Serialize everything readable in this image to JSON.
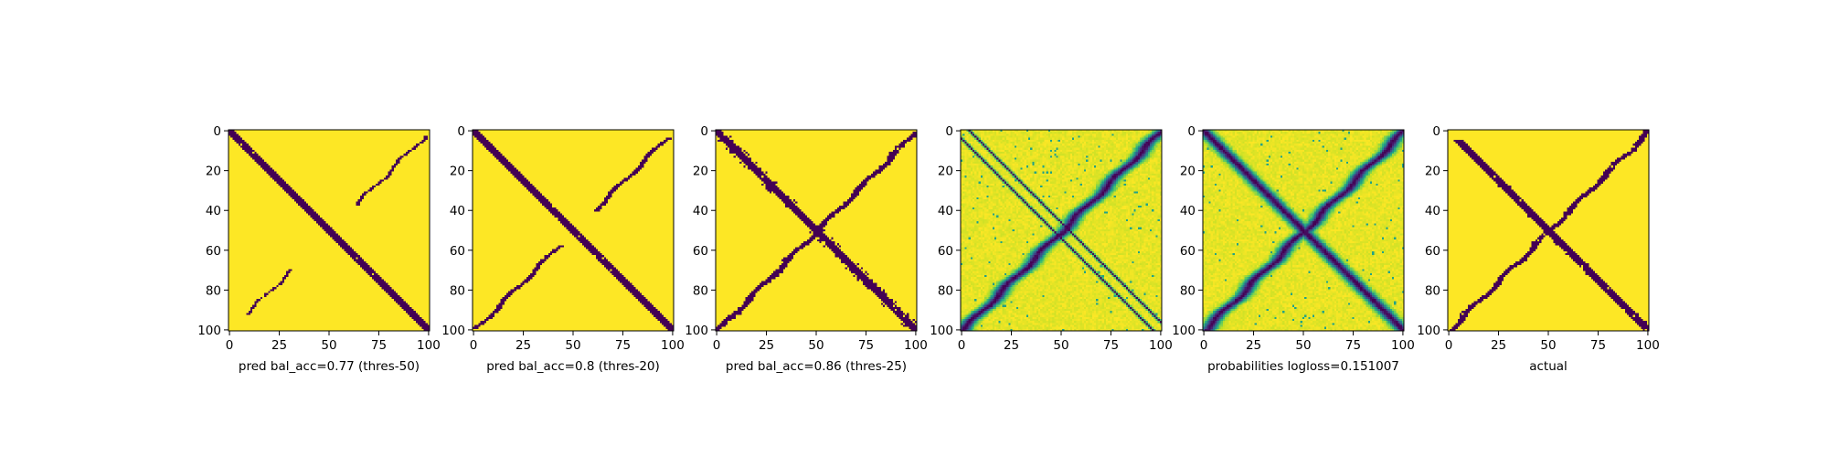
{
  "chart_data": [
    {
      "type": "heatmap",
      "title": "",
      "xlabel": "pred bal_acc=0.77 (thres-50)",
      "ylabel": "",
      "xlim": [
        0,
        101
      ],
      "ylim": [
        101,
        0
      ],
      "x_ticks": [
        "0",
        "25",
        "50",
        "75",
        "100"
      ],
      "y_ticks": [
        "0",
        "20",
        "40",
        "60",
        "80",
        "100"
      ],
      "colormap": "viridis",
      "grid": false,
      "pattern": {
        "diagonal_width": 2.6,
        "diagonal_extent": [
          0,
          101
        ],
        "anti_bands": [
          {
            "from": 37,
            "to": 3,
            "width": 1.1,
            "gap": [
              null,
              null
            ]
          },
          {
            "from": 70,
            "to": 92,
            "width": 1.0,
            "gap": [
              null,
              null
            ]
          }
        ],
        "speckle": 0.0,
        "soft": false
      }
    },
    {
      "type": "heatmap",
      "title": "",
      "xlabel": "pred bal_acc=0.8 (thres-20)",
      "ylabel": "",
      "xlim": [
        0,
        101
      ],
      "ylim": [
        101,
        0
      ],
      "x_ticks": [
        "0",
        "25",
        "50",
        "75",
        "100"
      ],
      "y_ticks": [
        "0",
        "20",
        "40",
        "60",
        "80",
        "100"
      ],
      "colormap": "viridis",
      "grid": false,
      "pattern": {
        "diagonal_width": 3.0,
        "diagonal_extent": [
          0,
          101
        ],
        "anti_bands": [
          {
            "from": 40,
            "to": 4,
            "width": 1.5,
            "gap": [
              null,
              null
            ]
          },
          {
            "from": 58,
            "to": 99,
            "width": 1.5,
            "gap": [
              null,
              null
            ]
          }
        ],
        "speckle": 0.0,
        "soft": false
      }
    },
    {
      "type": "heatmap",
      "title": "",
      "xlabel": "pred bal_acc=0.86 (thres-25)",
      "ylabel": "",
      "xlim": [
        0,
        101
      ],
      "ylim": [
        101,
        0
      ],
      "x_ticks": [
        "0",
        "25",
        "50",
        "75",
        "100"
      ],
      "y_ticks": [
        "0",
        "20",
        "40",
        "60",
        "80",
        "100"
      ],
      "colormap": "viridis",
      "grid": false,
      "pattern": {
        "diagonal_width": 3.2,
        "diagonal_extent": [
          0,
          101
        ],
        "anti_bands": [
          {
            "from": 0,
            "to": 101,
            "width": 2.0,
            "gap": [
              null,
              null
            ]
          }
        ],
        "speckle": 0.05,
        "soft": false
      }
    },
    {
      "type": "heatmap",
      "title": "",
      "xlabel": "",
      "ylabel": "",
      "xlim": [
        0,
        101
      ],
      "ylim": [
        101,
        0
      ],
      "x_ticks": [
        "0",
        "25",
        "50",
        "75",
        "100"
      ],
      "y_ticks": [
        "0",
        "20",
        "40",
        "60",
        "80",
        "100"
      ],
      "colormap": "viridis",
      "grid": false,
      "pattern": {
        "diagonal_width": 0,
        "diagonal_extent": [
          0,
          101
        ],
        "parallel_lines": [
          -4,
          4
        ],
        "anti_bands": [
          {
            "from": 0,
            "to": 101,
            "width": 3.5,
            "gap": [
              null,
              null
            ]
          }
        ],
        "speckle": 0.12,
        "soft": true
      }
    },
    {
      "type": "heatmap",
      "title": "",
      "xlabel": "probabilities logloss=0.151007",
      "ylabel": "",
      "xlim": [
        0,
        101
      ],
      "ylim": [
        101,
        0
      ],
      "x_ticks": [
        "0",
        "25",
        "50",
        "75",
        "100"
      ],
      "y_ticks": [
        "0",
        "20",
        "40",
        "60",
        "80",
        "100"
      ],
      "colormap": "viridis",
      "grid": false,
      "pattern": {
        "diagonal_width": 3.5,
        "diagonal_extent": [
          0,
          101
        ],
        "anti_bands": [
          {
            "from": 0,
            "to": 101,
            "width": 3.5,
            "gap": [
              null,
              null
            ]
          }
        ],
        "speckle": 0.12,
        "soft": true
      }
    },
    {
      "type": "heatmap",
      "title": "",
      "xlabel": "actual",
      "ylabel": "",
      "xlim": [
        0,
        101
      ],
      "ylim": [
        101,
        0
      ],
      "x_ticks": [
        "0",
        "25",
        "50",
        "75",
        "100"
      ],
      "y_ticks": [
        "0",
        "20",
        "40",
        "60",
        "80",
        "100"
      ],
      "colormap": "viridis",
      "grid": false,
      "pattern": {
        "diagonal_width": 3.0,
        "diagonal_extent": [
          5,
          101
        ],
        "anti_bands": [
          {
            "from": 0,
            "to": 101,
            "width": 2.0,
            "gap": [
              null,
              null
            ]
          }
        ],
        "speckle": 0.02,
        "soft": false
      }
    }
  ]
}
